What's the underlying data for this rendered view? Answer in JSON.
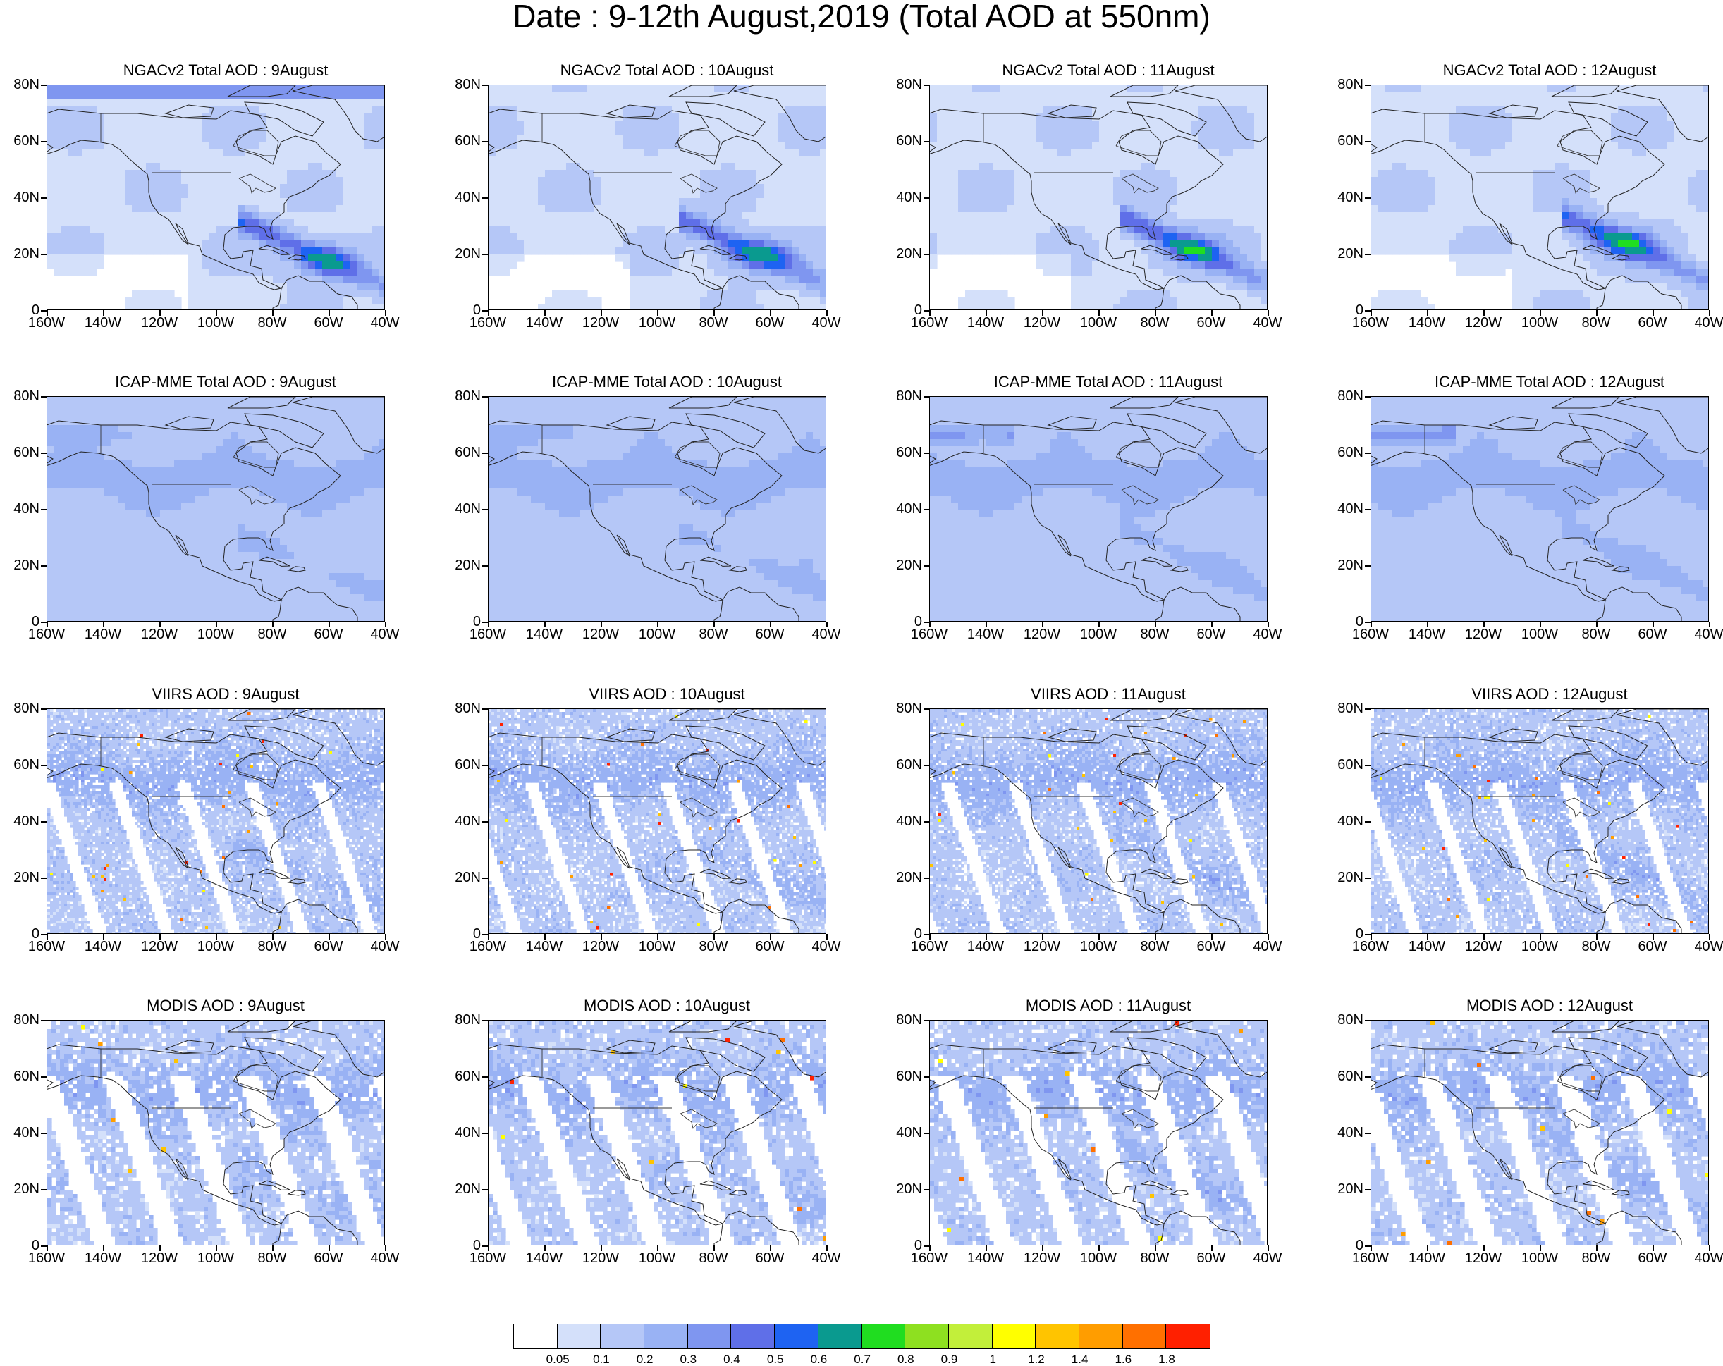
{
  "title": "Date : 9-12th August,2019 (Total AOD at 550nm)",
  "map": {
    "lon_ticks": [
      "160W",
      "140W",
      "120W",
      "100W",
      "80W",
      "60W",
      "40W"
    ],
    "lat_ticks": [
      "80N",
      "60N",
      "40N",
      "20N",
      "0"
    ],
    "lon_range": [
      -160,
      -40
    ],
    "lat_range": [
      0,
      80
    ]
  },
  "panels": [
    {
      "title": "NGACv2 Total AOD : 9August",
      "product": "NGACv2",
      "day": 9
    },
    {
      "title": "NGACv2 Total AOD : 10August",
      "product": "NGACv2",
      "day": 10
    },
    {
      "title": "NGACv2 Total AOD : 11August",
      "product": "NGACv2",
      "day": 11
    },
    {
      "title": "NGACv2 Total AOD : 12August",
      "product": "NGACv2",
      "day": 12
    },
    {
      "title": "ICAP-MME Total AOD : 9August",
      "product": "ICAP-MME",
      "day": 9
    },
    {
      "title": "ICAP-MME Total AOD : 10August",
      "product": "ICAP-MME",
      "day": 10
    },
    {
      "title": "ICAP-MME Total AOD : 11August",
      "product": "ICAP-MME",
      "day": 11
    },
    {
      "title": "ICAP-MME Total AOD : 12August",
      "product": "ICAP-MME",
      "day": 12
    },
    {
      "title": "VIIRS AOD : 9August",
      "product": "VIIRS",
      "day": 9
    },
    {
      "title": "VIIRS AOD : 10August",
      "product": "VIIRS",
      "day": 10
    },
    {
      "title": "VIIRS AOD : 11August",
      "product": "VIIRS",
      "day": 11
    },
    {
      "title": "VIIRS AOD : 12August",
      "product": "VIIRS",
      "day": 12
    },
    {
      "title": "MODIS AOD : 9August",
      "product": "MODIS",
      "day": 9
    },
    {
      "title": "MODIS AOD : 10August",
      "product": "MODIS",
      "day": 10
    },
    {
      "title": "MODIS AOD : 11August",
      "product": "MODIS",
      "day": 11
    },
    {
      "title": "MODIS AOD : 12August",
      "product": "MODIS",
      "day": 12
    }
  ],
  "colorbar": {
    "labels": [
      "0.05",
      "0.1",
      "0.2",
      "0.3",
      "0.4",
      "0.5",
      "0.6",
      "0.7",
      "0.8",
      "0.9",
      "1",
      "1.2",
      "1.4",
      "1.6",
      "1.8"
    ],
    "colors": [
      "#ffffff",
      "#d4e0fa",
      "#b5c7f7",
      "#99b2f4",
      "#7f96f0",
      "#5f6fe8",
      "#1e63f2",
      "#0a9a8f",
      "#20dd20",
      "#8ee020",
      "#c2ef3a",
      "#ffff00",
      "#ffc400",
      "#ff9d00",
      "#ff7000",
      "#ff2000"
    ]
  }
}
